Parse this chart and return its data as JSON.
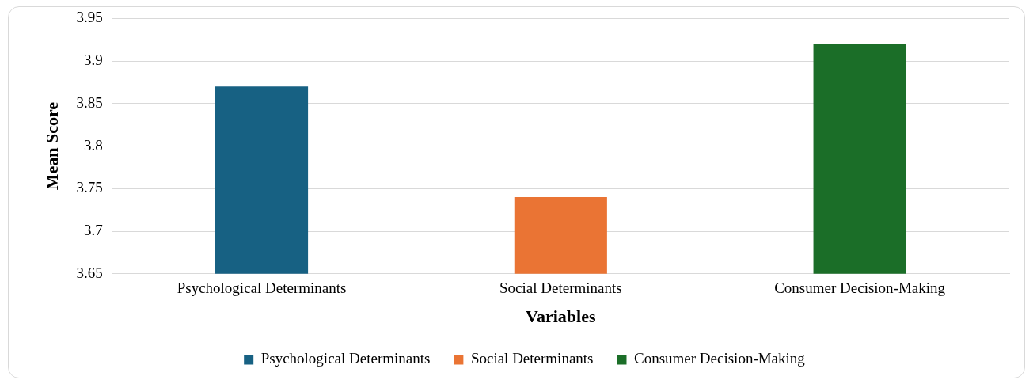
{
  "chart_data": {
    "type": "bar",
    "xlabel": "Variables",
    "ylabel": "Mean Score",
    "categories": [
      "Psychological Determinants",
      "Social Determinants",
      "Consumer Decision-Making"
    ],
    "series": [
      {
        "name": "Psychological Determinants",
        "color": "#176183",
        "values": [
          3.87,
          null,
          null
        ]
      },
      {
        "name": "Social Determinants",
        "color": "#ea7434",
        "values": [
          null,
          3.74,
          null
        ]
      },
      {
        "name": "Consumer Decision-Making",
        "color": "#1b6e28",
        "values": [
          null,
          null,
          3.92
        ]
      }
    ],
    "ylim": [
      3.65,
      3.95
    ],
    "yticks": [
      3.65,
      3.7,
      3.75,
      3.8,
      3.85,
      3.9,
      3.95
    ],
    "grid": "y",
    "legend": "bottom"
  }
}
